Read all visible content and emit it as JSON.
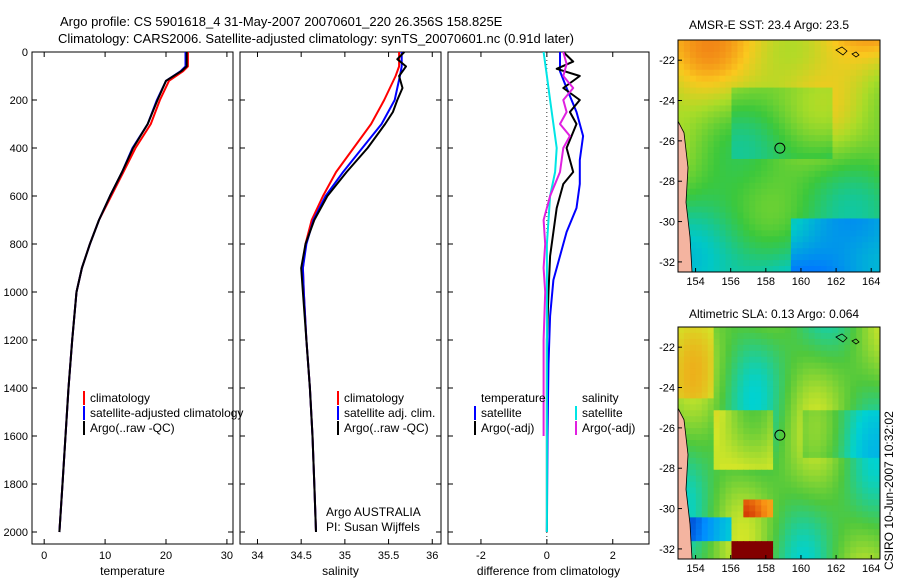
{
  "figure": {
    "title_line1": "Argo profile: CS 5901618_4 31-May-2007 20070601_220 26.356S 158.825E",
    "title_line2": "Climatology: CARS2006. Satellite-adjusted climatology: synTS_20070601.nc (0.91d later)",
    "footer_rotated": "CSIRO 10-Jun-2007 10:32:02",
    "credit_line1": "Argo AUSTRALIA",
    "credit_line2": "PI: Susan Wijffels"
  },
  "colors": {
    "climatology": "#ff0000",
    "satellite": "#0000ff",
    "argo": "#000000",
    "sal_satellite": "#00e5e5",
    "sal_argo": "#e020e0"
  },
  "chart_data": [
    {
      "type": "line",
      "xlabel": "temperature",
      "ylabel": "",
      "xlim": [
        -2,
        31
      ],
      "ylim": [
        0,
        2050
      ],
      "y_reversed": true,
      "xticks": [
        0,
        10,
        20,
        30
      ],
      "yticks": [
        0,
        200,
        400,
        600,
        800,
        1000,
        1200,
        1400,
        1600,
        1800,
        2000
      ],
      "legend": [
        "climatology",
        "satellite-adjusted climatology",
        "Argo(..raw -QC)"
      ],
      "series": [
        {
          "name": "climatology",
          "color": "#ff0000",
          "points": [
            [
              23.6,
              0
            ],
            [
              23.6,
              60
            ],
            [
              22.8,
              80
            ],
            [
              20.5,
              120
            ],
            [
              19,
              200
            ],
            [
              17.5,
              300
            ],
            [
              15,
              400
            ],
            [
              13,
              500
            ],
            [
              11,
              600
            ],
            [
              9,
              700
            ],
            [
              7.5,
              800
            ],
            [
              6.2,
              900
            ],
            [
              5.3,
              1000
            ],
            [
              4.6,
              1200
            ],
            [
              4,
              1400
            ],
            [
              3.5,
              1600
            ],
            [
              3,
              1800
            ],
            [
              2.5,
              2000
            ]
          ]
        },
        {
          "name": "satellite-adjusted climatology",
          "color": "#0000ff",
          "points": [
            [
              23.2,
              0
            ],
            [
              23.2,
              60
            ],
            [
              22.4,
              80
            ],
            [
              20,
              120
            ],
            [
              18.5,
              200
            ],
            [
              17,
              300
            ],
            [
              14.5,
              400
            ],
            [
              12.8,
              500
            ],
            [
              10.8,
              600
            ],
            [
              9,
              700
            ],
            [
              7.5,
              800
            ],
            [
              6.2,
              900
            ],
            [
              5.3,
              1000
            ],
            [
              4.6,
              1200
            ],
            [
              4,
              1400
            ],
            [
              3.5,
              1600
            ],
            [
              3,
              1800
            ],
            [
              2.5,
              2000
            ]
          ]
        },
        {
          "name": "Argo(..raw -QC)",
          "color": "#000000",
          "points": [
            [
              23.4,
              0
            ],
            [
              23.4,
              60
            ],
            [
              22.5,
              80
            ],
            [
              20,
              120
            ],
            [
              18.6,
              200
            ],
            [
              17,
              300
            ],
            [
              14.6,
              400
            ],
            [
              12.8,
              500
            ],
            [
              10.8,
              600
            ],
            [
              9,
              700
            ],
            [
              7.5,
              800
            ],
            [
              6.2,
              900
            ],
            [
              5.3,
              1000
            ],
            [
              4.6,
              1200
            ],
            [
              4,
              1400
            ],
            [
              3.5,
              1600
            ],
            [
              3,
              1800
            ],
            [
              2.5,
              2000
            ]
          ]
        }
      ]
    },
    {
      "type": "line",
      "xlabel": "salinity",
      "ylabel": "",
      "xlim": [
        33.8,
        36.1
      ],
      "ylim": [
        0,
        2050
      ],
      "y_reversed": true,
      "xticks": [
        34,
        34.5,
        35,
        35.5,
        36
      ],
      "legend": [
        "climatology",
        "satellite adj. clim.",
        "Argo(..raw -QC)"
      ],
      "series": [
        {
          "name": "climatology",
          "color": "#ff0000",
          "points": [
            [
              35.62,
              0
            ],
            [
              35.62,
              60
            ],
            [
              35.58,
              100
            ],
            [
              35.45,
              200
            ],
            [
              35.3,
              300
            ],
            [
              35.1,
              400
            ],
            [
              34.9,
              500
            ],
            [
              34.75,
              600
            ],
            [
              34.62,
              700
            ],
            [
              34.55,
              800
            ],
            [
              34.52,
              900
            ],
            [
              34.53,
              1000
            ],
            [
              34.56,
              1200
            ],
            [
              34.6,
              1400
            ],
            [
              34.63,
              1600
            ],
            [
              34.65,
              1800
            ],
            [
              34.67,
              2000
            ]
          ]
        },
        {
          "name": "satellite adj. clim.",
          "color": "#0000ff",
          "points": [
            [
              35.65,
              0
            ],
            [
              35.65,
              60
            ],
            [
              35.63,
              100
            ],
            [
              35.57,
              200
            ],
            [
              35.42,
              300
            ],
            [
              35.2,
              400
            ],
            [
              34.98,
              500
            ],
            [
              34.78,
              600
            ],
            [
              34.64,
              700
            ],
            [
              34.56,
              800
            ],
            [
              34.52,
              900
            ],
            [
              34.53,
              1000
            ],
            [
              34.56,
              1200
            ],
            [
              34.6,
              1400
            ],
            [
              34.63,
              1600
            ],
            [
              34.65,
              1800
            ],
            [
              34.67,
              2000
            ]
          ]
        },
        {
          "name": "Argo(..raw -QC)",
          "color": "#000000",
          "points": [
            [
              35.68,
              0
            ],
            [
              35.6,
              30
            ],
            [
              35.7,
              60
            ],
            [
              35.62,
              100
            ],
            [
              35.66,
              150
            ],
            [
              35.6,
              200
            ],
            [
              35.55,
              250
            ],
            [
              35.46,
              300
            ],
            [
              35.26,
              400
            ],
            [
              35.02,
              500
            ],
            [
              34.8,
              600
            ],
            [
              34.65,
              700
            ],
            [
              34.55,
              800
            ],
            [
              34.5,
              900
            ],
            [
              34.52,
              1000
            ],
            [
              34.56,
              1200
            ],
            [
              34.6,
              1400
            ],
            [
              34.63,
              1600
            ],
            [
              34.65,
              1800
            ],
            [
              34.67,
              2000
            ]
          ]
        }
      ]
    },
    {
      "type": "line",
      "xlabel": "difference from climatology",
      "ylabel": "",
      "xlim": [
        -3,
        3.1
      ],
      "ylim": [
        0,
        2050
      ],
      "y_reversed": true,
      "xticks": [
        -2,
        0,
        2
      ],
      "legend": [
        "temperature",
        "satellite",
        "Argo(-adj)",
        "salinity",
        "satellite",
        "Argo(-adj)"
      ],
      "series": [
        {
          "name": "temperature satellite",
          "color": "#0000ff",
          "points": [
            [
              0.4,
              0
            ],
            [
              0.4,
              80
            ],
            [
              0.6,
              150
            ],
            [
              0.9,
              250
            ],
            [
              1.1,
              350
            ],
            [
              1.0,
              450
            ],
            [
              1.0,
              550
            ],
            [
              0.9,
              650
            ],
            [
              0.6,
              750
            ],
            [
              0.4,
              850
            ],
            [
              0.2,
              950
            ],
            [
              0.1,
              1100
            ],
            [
              0.05,
              1300
            ],
            [
              0.02,
              1600
            ],
            [
              0,
              2000
            ]
          ]
        },
        {
          "name": "temperature Argo(-adj)",
          "color": "#000000",
          "points": [
            [
              0.5,
              0
            ],
            [
              0.8,
              40
            ],
            [
              0.3,
              70
            ],
            [
              1.0,
              100
            ],
            [
              0.5,
              150
            ],
            [
              1.0,
              200
            ],
            [
              0.7,
              250
            ],
            [
              0.9,
              300
            ],
            [
              0.6,
              400
            ],
            [
              0.8,
              500
            ],
            [
              0.5,
              550
            ],
            [
              0.3,
              650
            ],
            [
              0.2,
              750
            ],
            [
              0.1,
              850
            ],
            [
              0.05,
              1000
            ],
            [
              0,
              1200
            ],
            [
              0,
              1600
            ],
            [
              0,
              2000
            ]
          ]
        },
        {
          "name": "salinity satellite",
          "color": "#00e5e5",
          "points": [
            [
              -0.1,
              0
            ],
            [
              0.0,
              100
            ],
            [
              0.1,
              200
            ],
            [
              0.2,
              300
            ],
            [
              0.3,
              400
            ],
            [
              0.25,
              500
            ],
            [
              0.1,
              600
            ],
            [
              0.05,
              700
            ],
            [
              0,
              800
            ],
            [
              0,
              1000
            ],
            [
              0,
              1400
            ],
            [
              0,
              2000
            ]
          ]
        },
        {
          "name": "salinity Argo(-adj)",
          "color": "#e020e0",
          "points": [
            [
              0.5,
              0
            ],
            [
              0.6,
              50
            ],
            [
              0.5,
              100
            ],
            [
              0.8,
              150
            ],
            [
              0.5,
              200
            ],
            [
              0.6,
              250
            ],
            [
              0.4,
              300
            ],
            [
              0.7,
              350
            ],
            [
              0.5,
              400
            ],
            [
              0.4,
              500
            ],
            [
              0.1,
              600
            ],
            [
              -0.1,
              700
            ],
            [
              -0.05,
              800
            ],
            [
              -0.1,
              900
            ],
            [
              -0.05,
              1000
            ],
            [
              -0.1,
              1200
            ],
            [
              -0.1,
              1400
            ],
            [
              -0.1,
              1600
            ]
          ]
        }
      ]
    },
    {
      "type": "heatmap",
      "title": "AMSR-E SST: 23.4 Argo: 23.5",
      "xticks": [
        154,
        156,
        158,
        160,
        162,
        164
      ],
      "yticks": [
        -22,
        -24,
        -26,
        -28,
        -30,
        -32
      ],
      "xlim": [
        153,
        164.5
      ],
      "ylim": [
        -32.5,
        -21
      ],
      "marker": {
        "lon": 158.8,
        "lat": -26.36
      }
    },
    {
      "type": "heatmap",
      "title": "Altimetric SLA: 0.13 Argo: 0.064",
      "xticks": [
        154,
        156,
        158,
        160,
        162,
        164
      ],
      "yticks": [
        -22,
        -24,
        -26,
        -28,
        -30,
        -32
      ],
      "xlim": [
        153,
        164.5
      ],
      "ylim": [
        -32.5,
        -21
      ],
      "marker": {
        "lon": 158.8,
        "lat": -26.36
      }
    }
  ]
}
